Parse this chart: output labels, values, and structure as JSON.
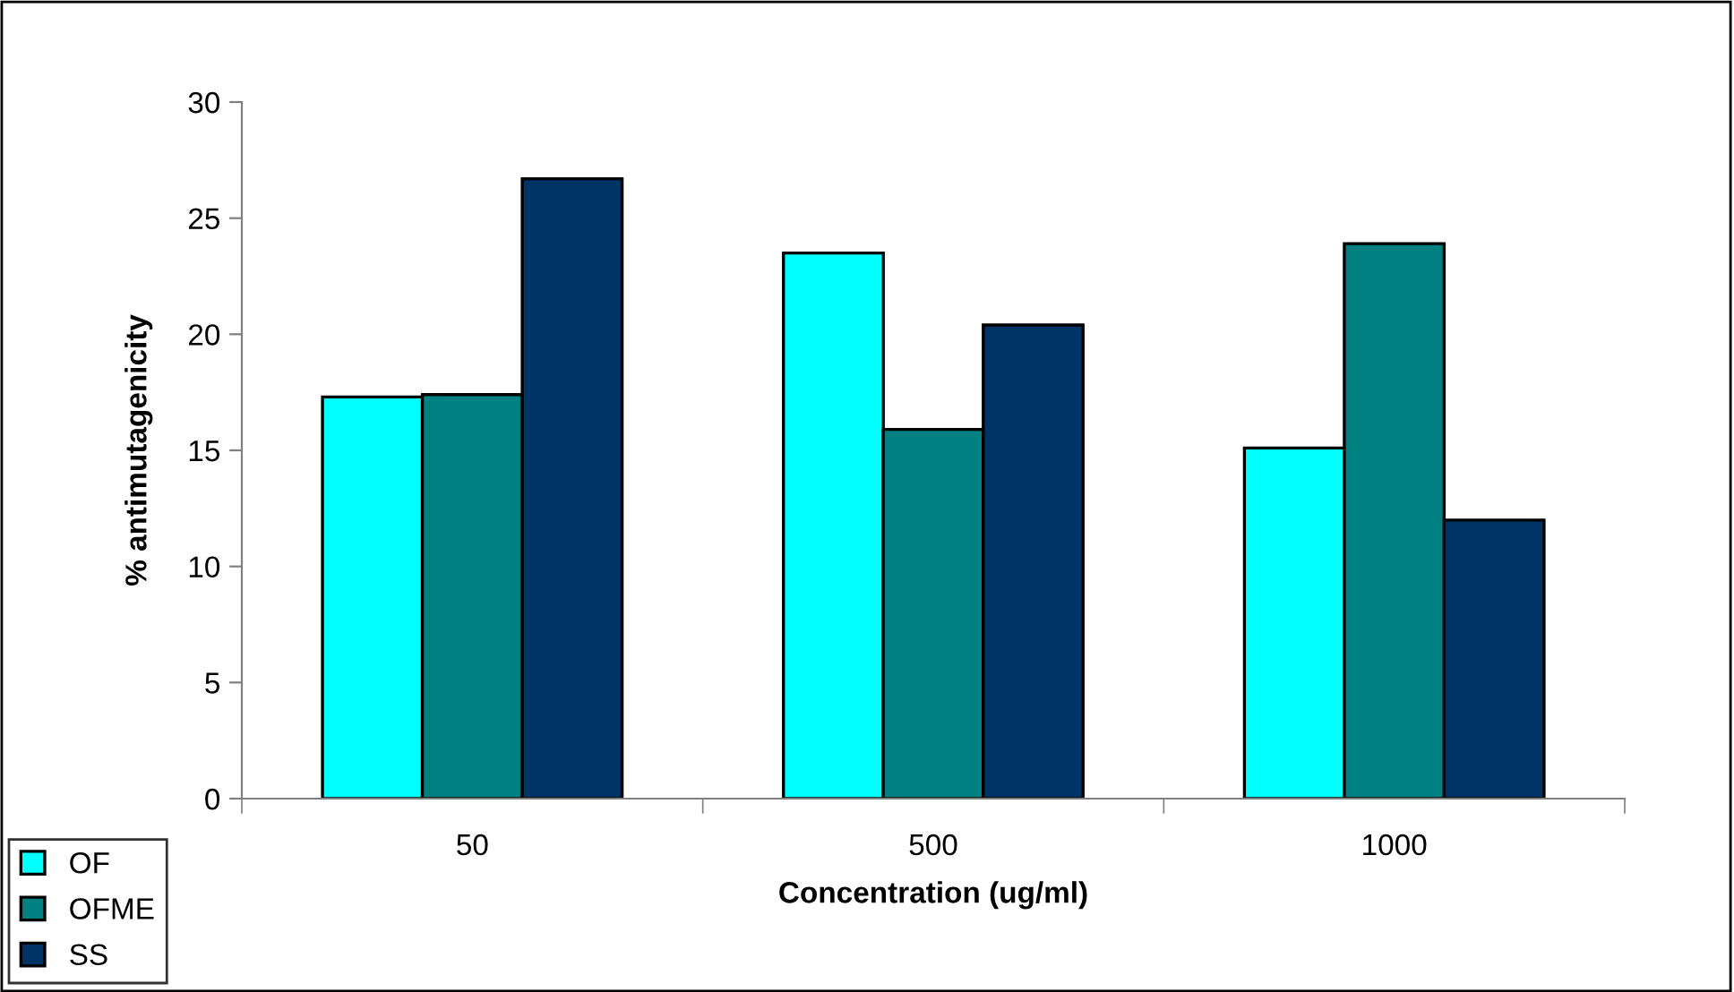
{
  "chart_data": {
    "type": "bar",
    "xlabel": "Concentration (ug/ml)",
    "ylabel": "% antimutagenicity",
    "categories": [
      "50",
      "500",
      "1000"
    ],
    "series": [
      {
        "name": "OF",
        "color": "#00ffff",
        "values": [
          17.3,
          23.5,
          15.1
        ]
      },
      {
        "name": "OFME",
        "color": "#008080",
        "values": [
          17.4,
          15.9,
          23.9
        ]
      },
      {
        "name": "SS",
        "color": "#003366",
        "values": [
          26.7,
          20.4,
          12.0
        ]
      }
    ],
    "ylim": [
      0,
      30
    ],
    "yticks": [
      0,
      5,
      10,
      15,
      20,
      25,
      30
    ],
    "grid": false,
    "legend": "bottom left"
  }
}
